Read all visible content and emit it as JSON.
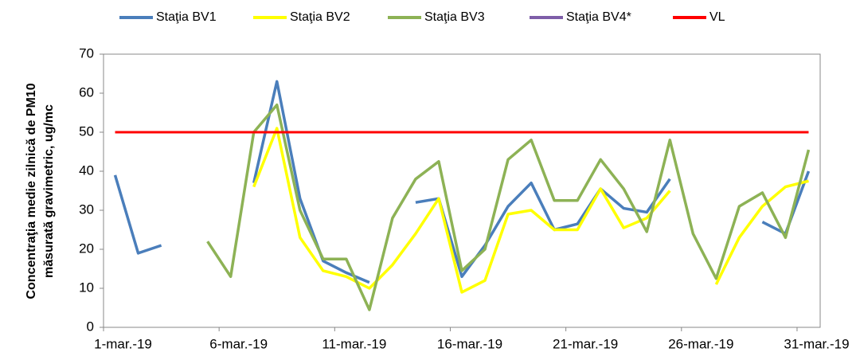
{
  "chart_data": {
    "type": "line",
    "ylabel": [
      "Concentraţia medie zilnică de PM10",
      "măsurată gravimetric, ug/mc"
    ],
    "categories": [
      "1-mar.-19",
      null,
      null,
      null,
      null,
      "6-mar.-19",
      null,
      null,
      null,
      null,
      "11-mar.-19",
      null,
      null,
      null,
      null,
      "16-mar.-19",
      null,
      null,
      null,
      null,
      "21-mar.-19",
      null,
      null,
      null,
      null,
      "26-mar.-19",
      null,
      null,
      null,
      null,
      "31-mar.-19"
    ],
    "series": [
      {
        "name": "Staţia BV1",
        "color": "#4a7ebb",
        "values": [
          39,
          19,
          21,
          null,
          null,
          null,
          37,
          63,
          33,
          17,
          14,
          11.5,
          null,
          32,
          33,
          13,
          21,
          31,
          37,
          25,
          26.5,
          35.5,
          30.5,
          29.5,
          38,
          null,
          null,
          null,
          27,
          24,
          40
        ]
      },
      {
        "name": "Staţia BV2",
        "color": "#ffff00",
        "values": [
          null,
          null,
          null,
          null,
          null,
          null,
          36,
          51,
          23,
          14.5,
          13,
          10,
          16,
          24,
          33,
          9,
          12,
          29,
          30,
          25,
          25,
          35.5,
          25.5,
          28,
          35,
          null,
          11,
          23,
          31,
          36,
          37.5
        ]
      },
      {
        "name": "Staţia BV3",
        "color": "#8db255",
        "values": [
          null,
          null,
          null,
          null,
          22,
          13,
          50,
          57,
          30,
          17.5,
          17.5,
          4.5,
          28,
          38,
          42.5,
          14.5,
          20,
          43,
          48,
          32.5,
          32.5,
          43,
          35.5,
          24.5,
          48,
          24,
          12.5,
          31,
          34.5,
          23,
          45.5
        ]
      },
      {
        "name": "Staţia BV4*",
        "color": "#7e5ea8",
        "values": [
          null,
          null,
          null,
          null,
          null,
          null,
          null,
          null,
          null,
          null,
          null,
          null,
          null,
          null,
          null,
          null,
          null,
          null,
          null,
          null,
          null,
          null,
          null,
          null,
          null,
          null,
          null,
          null,
          null,
          null,
          null
        ]
      },
      {
        "name": "VL",
        "color": "#ff0000",
        "values": [
          50,
          50,
          50,
          50,
          50,
          50,
          50,
          50,
          50,
          50,
          50,
          50,
          50,
          50,
          50,
          50,
          50,
          50,
          50,
          50,
          50,
          50,
          50,
          50,
          50,
          50,
          50,
          50,
          50,
          50,
          50
        ]
      }
    ],
    "ylim": [
      0,
      70
    ],
    "yticks": [
      0,
      10,
      20,
      30,
      40,
      50,
      60,
      70
    ],
    "grid": false
  }
}
